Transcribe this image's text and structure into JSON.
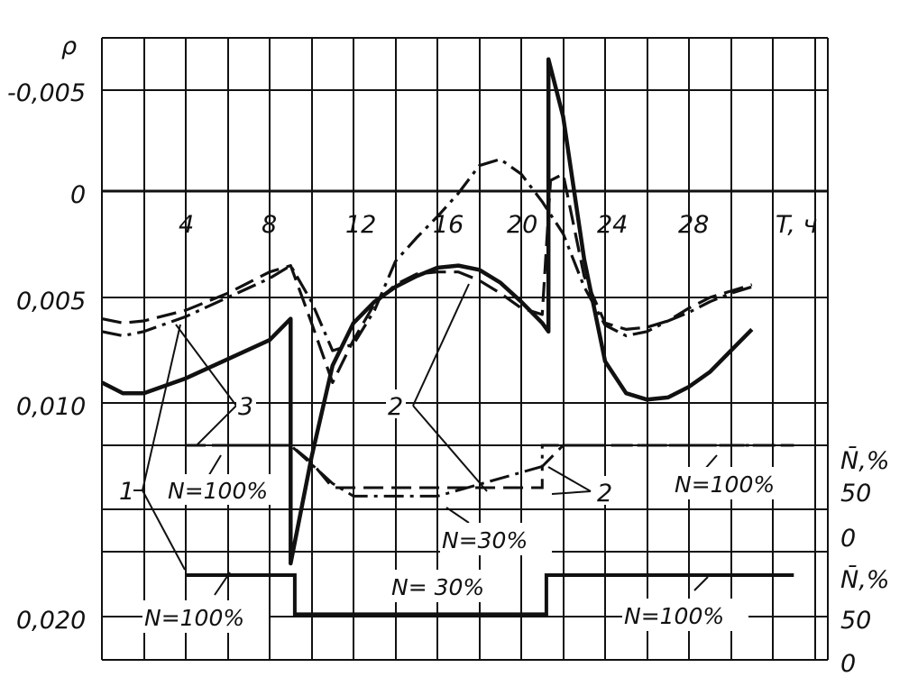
{
  "chart_data": {
    "type": "line",
    "title": "",
    "xlabel": "T, ч",
    "ylabel": "ρ",
    "x_ticks": [
      "4",
      "8",
      "12",
      "16",
      "20",
      "24",
      "28"
    ],
    "y_ticks": [
      "-0,005",
      "0",
      "0,005",
      "0,010",
      "0,020"
    ],
    "x_range": [
      0,
      33
    ],
    "y_range": [
      -0.0075,
      0.022
    ],
    "y_inverted": true,
    "grid": true,
    "series": [
      {
        "name": "1",
        "style": "solid-thick",
        "points": [
          [
            0,
            0.009
          ],
          [
            1,
            0.0095
          ],
          [
            2,
            0.0095
          ],
          [
            4,
            0.0088
          ],
          [
            6,
            0.0079
          ],
          [
            8,
            0.007
          ],
          [
            9,
            0.006
          ],
          [
            9,
            0.0175
          ],
          [
            10,
            0.0125
          ],
          [
            11,
            0.0082
          ],
          [
            12,
            0.0062
          ],
          [
            13,
            0.0052
          ],
          [
            14,
            0.0045
          ],
          [
            15,
            0.004
          ],
          [
            16,
            0.0036
          ],
          [
            17,
            0.0035
          ],
          [
            18,
            0.0037
          ],
          [
            19,
            0.0043
          ],
          [
            20,
            0.0052
          ],
          [
            21,
            0.0062
          ],
          [
            21.3,
            0.0066
          ],
          [
            21.3,
            -0.0062
          ],
          [
            22,
            -0.0035
          ],
          [
            23,
            0.0032
          ],
          [
            24,
            0.008
          ],
          [
            25,
            0.0095
          ],
          [
            26,
            0.0098
          ],
          [
            27,
            0.0097
          ],
          [
            28,
            0.0092
          ],
          [
            29,
            0.0085
          ],
          [
            30,
            0.0075
          ],
          [
            31,
            0.0065
          ]
        ]
      },
      {
        "name": "2",
        "style": "dashed",
        "points": [
          [
            0,
            0.006
          ],
          [
            1,
            0.0062
          ],
          [
            2,
            0.0061
          ],
          [
            4,
            0.0056
          ],
          [
            6,
            0.0048
          ],
          [
            8,
            0.0038
          ],
          [
            9,
            0.0035
          ],
          [
            10,
            0.0062
          ],
          [
            11,
            0.009
          ],
          [
            12,
            0.007
          ],
          [
            13,
            0.0053
          ],
          [
            14,
            0.0044
          ],
          [
            15,
            0.0039
          ],
          [
            16,
            0.0038
          ],
          [
            17,
            0.0038
          ],
          [
            18,
            0.0042
          ],
          [
            19,
            0.0048
          ],
          [
            20,
            0.0055
          ],
          [
            21,
            0.0058
          ],
          [
            21.4,
            -0.0005
          ],
          [
            22,
            -0.0008
          ],
          [
            23,
            0.004
          ],
          [
            24,
            0.0062
          ],
          [
            25,
            0.0065
          ],
          [
            26,
            0.0064
          ],
          [
            27,
            0.0061
          ],
          [
            28,
            0.0055
          ],
          [
            29,
            0.005
          ],
          [
            30,
            0.0047
          ],
          [
            31,
            0.0044
          ]
        ]
      },
      {
        "name": "3",
        "style": "dash-dot",
        "points": [
          [
            0,
            0.0066
          ],
          [
            1,
            0.0068
          ],
          [
            2,
            0.0066
          ],
          [
            4,
            0.0059
          ],
          [
            6,
            0.005
          ],
          [
            8,
            0.0041
          ],
          [
            9,
            0.0035
          ],
          [
            10,
            0.0052
          ],
          [
            11,
            0.0075
          ],
          [
            12,
            0.0072
          ],
          [
            13,
            0.0056
          ],
          [
            14,
            0.0033
          ],
          [
            15,
            0.0022
          ],
          [
            16,
            0.0012
          ],
          [
            17,
            0.0001
          ],
          [
            18,
            -0.0012
          ],
          [
            19,
            -0.0015
          ],
          [
            20,
            -0.0008
          ],
          [
            21,
            0.0005
          ],
          [
            22,
            0.002
          ],
          [
            23,
            0.0045
          ],
          [
            24,
            0.0063
          ],
          [
            25,
            0.0068
          ],
          [
            26,
            0.0066
          ],
          [
            27,
            0.0061
          ],
          [
            28,
            0.0057
          ],
          [
            29,
            0.0052
          ],
          [
            30,
            0.0048
          ],
          [
            31,
            0.0045
          ]
        ]
      }
    ],
    "power_upper": {
      "axis_label": "N̄,%",
      "ticks": [
        "50",
        "0"
      ],
      "curve_2_points": [
        [
          4,
          100
        ],
        [
          9,
          100
        ],
        [
          9,
          100
        ],
        [
          10,
          80
        ],
        [
          11,
          50
        ],
        [
          12,
          50
        ],
        [
          21,
          50
        ],
        [
          21,
          75
        ],
        [
          22,
          100
        ],
        [
          33,
          100
        ]
      ],
      "curve_3_points": [
        [
          4,
          100
        ],
        [
          9,
          100
        ],
        [
          11,
          55
        ],
        [
          12,
          40
        ],
        [
          16,
          40
        ],
        [
          21,
          75
        ],
        [
          21,
          100
        ],
        [
          22,
          100
        ],
        [
          33,
          100
        ]
      ]
    },
    "power_lower": {
      "axis_label": "N̄,%",
      "ticks": [
        "50",
        "0"
      ],
      "curve_1_points": [
        [
          4,
          100
        ],
        [
          9.2,
          100
        ],
        [
          9.2,
          30
        ],
        [
          21.2,
          30
        ],
        [
          21.2,
          100
        ],
        [
          33,
          100
        ]
      ]
    },
    "annotations": [
      "1",
      "2",
      "3",
      "2",
      "N=100%",
      "N=100%",
      "N=30%",
      "N=100%",
      "N= 30%",
      "N=100%"
    ]
  }
}
